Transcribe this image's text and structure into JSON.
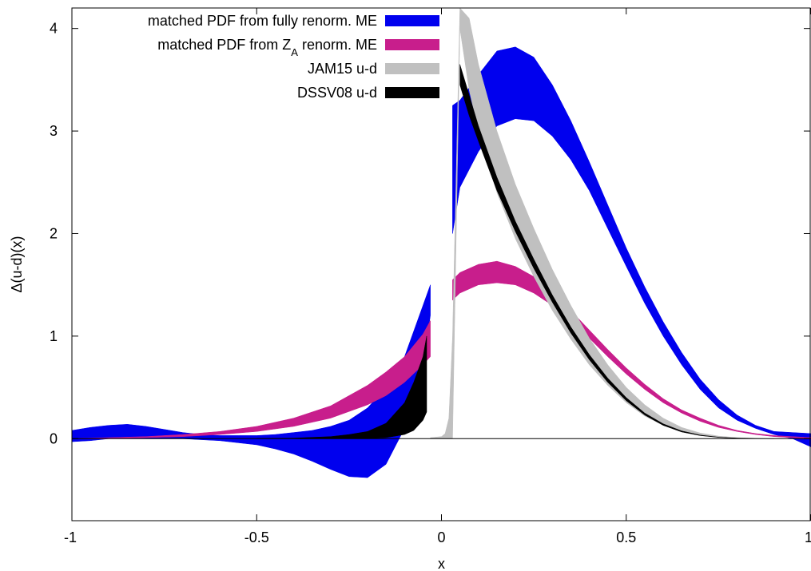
{
  "chart_data": {
    "type": "area",
    "title": "",
    "xlabel": "x",
    "ylabel": "Δ(u-d)(x)",
    "xlim": [
      -1,
      1
    ],
    "ylim": [
      -0.8,
      4.2
    ],
    "xticks": [
      -1,
      -0.5,
      0,
      0.5,
      1
    ],
    "xtick_labels": [
      "-1",
      "-0.5",
      "0",
      "0.5",
      "1"
    ],
    "yticks": [
      0,
      1,
      2,
      3,
      4
    ],
    "ytick_labels": [
      "0",
      "1",
      "2",
      "3",
      "4"
    ],
    "grid": false,
    "zero_line": true,
    "legend_position": "top-left",
    "series": [
      {
        "name": "matched PDF from fully renorm. ME",
        "legend_main": "matched PDF from fully renorm. ME",
        "legend_sub": "",
        "legend_after": "",
        "color": "#0000ee",
        "x": [
          -1.0,
          -0.95,
          -0.9,
          -0.85,
          -0.8,
          -0.75,
          -0.7,
          -0.65,
          -0.6,
          -0.55,
          -0.5,
          -0.45,
          -0.4,
          -0.35,
          -0.3,
          -0.25,
          -0.2,
          -0.15,
          -0.1,
          -0.05,
          -0.03,
          0.03,
          0.05,
          0.1,
          0.15,
          0.2,
          0.25,
          0.3,
          0.35,
          0.4,
          0.45,
          0.5,
          0.55,
          0.6,
          0.65,
          0.7,
          0.75,
          0.8,
          0.85,
          0.9,
          0.95,
          1.0
        ],
        "lower": [
          -0.03,
          -0.02,
          0.0,
          0.0,
          0.0,
          0.0,
          0.0,
          -0.01,
          -0.02,
          -0.04,
          -0.06,
          -0.1,
          -0.15,
          -0.22,
          -0.3,
          -0.37,
          -0.38,
          -0.25,
          0.1,
          0.7,
          1.2,
          2.0,
          2.45,
          2.8,
          3.05,
          3.12,
          3.1,
          2.95,
          2.72,
          2.42,
          2.05,
          1.68,
          1.32,
          1.0,
          0.72,
          0.48,
          0.3,
          0.18,
          0.1,
          0.04,
          0.0,
          -0.08
        ],
        "upper": [
          0.08,
          0.11,
          0.13,
          0.14,
          0.12,
          0.09,
          0.06,
          0.04,
          0.03,
          0.03,
          0.03,
          0.04,
          0.06,
          0.08,
          0.12,
          0.18,
          0.3,
          0.5,
          0.8,
          1.3,
          1.5,
          3.25,
          3.3,
          3.55,
          3.78,
          3.82,
          3.72,
          3.45,
          3.1,
          2.7,
          2.28,
          1.86,
          1.48,
          1.14,
          0.84,
          0.58,
          0.38,
          0.23,
          0.13,
          0.07,
          0.06,
          0.05
        ]
      },
      {
        "name": "matched PDF from Z_A renorm. ME",
        "legend_main": "matched PDF from Z",
        "legend_sub": "A",
        "legend_after": " renorm. ME",
        "color": "#c81e8c",
        "x": [
          -1.0,
          -0.9,
          -0.8,
          -0.7,
          -0.6,
          -0.5,
          -0.4,
          -0.3,
          -0.2,
          -0.15,
          -0.1,
          -0.05,
          -0.03,
          0.03,
          0.05,
          0.1,
          0.15,
          0.2,
          0.25,
          0.3,
          0.35,
          0.4,
          0.45,
          0.5,
          0.55,
          0.6,
          0.65,
          0.7,
          0.75,
          0.8,
          0.85,
          0.9,
          0.95,
          1.0
        ],
        "lower": [
          0.0,
          0.0,
          0.01,
          0.02,
          0.04,
          0.07,
          0.12,
          0.2,
          0.33,
          0.42,
          0.55,
          0.72,
          0.8,
          1.35,
          1.42,
          1.5,
          1.52,
          1.5,
          1.42,
          1.3,
          1.15,
          0.98,
          0.8,
          0.63,
          0.48,
          0.35,
          0.25,
          0.17,
          0.11,
          0.07,
          0.04,
          0.02,
          0.01,
          0.0
        ],
        "upper": [
          0.0,
          0.01,
          0.02,
          0.04,
          0.07,
          0.12,
          0.2,
          0.32,
          0.52,
          0.65,
          0.8,
          1.02,
          1.15,
          1.55,
          1.62,
          1.7,
          1.73,
          1.68,
          1.58,
          1.42,
          1.25,
          1.06,
          0.87,
          0.69,
          0.53,
          0.39,
          0.28,
          0.2,
          0.13,
          0.08,
          0.05,
          0.03,
          0.02,
          0.01
        ]
      },
      {
        "name": "JAM15 u-d",
        "legend_main": "JAM15 u-d",
        "legend_sub": "",
        "legend_after": "",
        "color": "#c0c0c0",
        "x": [
          -0.03,
          0.0,
          0.01,
          0.02,
          0.03,
          0.05,
          0.075,
          0.1,
          0.15,
          0.2,
          0.25,
          0.3,
          0.35,
          0.4,
          0.45,
          0.5,
          0.55,
          0.6,
          0.65,
          0.7,
          0.75,
          0.8,
          0.85,
          0.9,
          0.95
        ],
        "lower": [
          0.0,
          0.0,
          0.0,
          0.0,
          0.0,
          4.0,
          3.4,
          3.0,
          2.4,
          1.95,
          1.58,
          1.25,
          0.97,
          0.72,
          0.52,
          0.35,
          0.22,
          0.13,
          0.07,
          0.03,
          0.012,
          0.004,
          0.001,
          0.0,
          0.0
        ],
        "upper": [
          0.01,
          0.02,
          0.05,
          0.2,
          1.0,
          4.6,
          4.1,
          3.65,
          3.0,
          2.48,
          2.05,
          1.65,
          1.3,
          0.98,
          0.72,
          0.5,
          0.33,
          0.2,
          0.11,
          0.055,
          0.025,
          0.01,
          0.004,
          0.001,
          0.0
        ]
      },
      {
        "name": "DSSV08 u-d",
        "legend_main": "DSSV08 u-d",
        "legend_sub": "",
        "legend_after": "",
        "color": "#000000",
        "x": [
          -0.5,
          -0.4,
          -0.3,
          -0.25,
          -0.2,
          -0.15,
          -0.1,
          -0.075,
          -0.05,
          -0.04,
          0.05,
          0.075,
          0.1,
          0.15,
          0.2,
          0.25,
          0.3,
          0.35,
          0.4,
          0.45,
          0.5,
          0.55,
          0.6,
          0.65,
          0.7,
          0.75,
          0.8,
          0.85,
          0.9
        ],
        "lower": [
          0.0,
          0.0,
          0.0,
          0.0,
          0.0,
          0.01,
          0.04,
          0.08,
          0.18,
          0.26,
          3.45,
          3.15,
          2.9,
          2.42,
          2.02,
          1.66,
          1.33,
          1.03,
          0.77,
          0.55,
          0.37,
          0.23,
          0.13,
          0.065,
          0.03,
          0.012,
          0.004,
          0.001,
          0.0
        ],
        "upper": [
          0.002,
          0.005,
          0.02,
          0.04,
          0.07,
          0.15,
          0.35,
          0.55,
          0.8,
          1.0,
          3.65,
          3.35,
          3.05,
          2.55,
          2.12,
          1.75,
          1.4,
          1.09,
          0.82,
          0.59,
          0.4,
          0.25,
          0.145,
          0.075,
          0.035,
          0.015,
          0.005,
          0.001,
          0.0
        ]
      }
    ]
  }
}
